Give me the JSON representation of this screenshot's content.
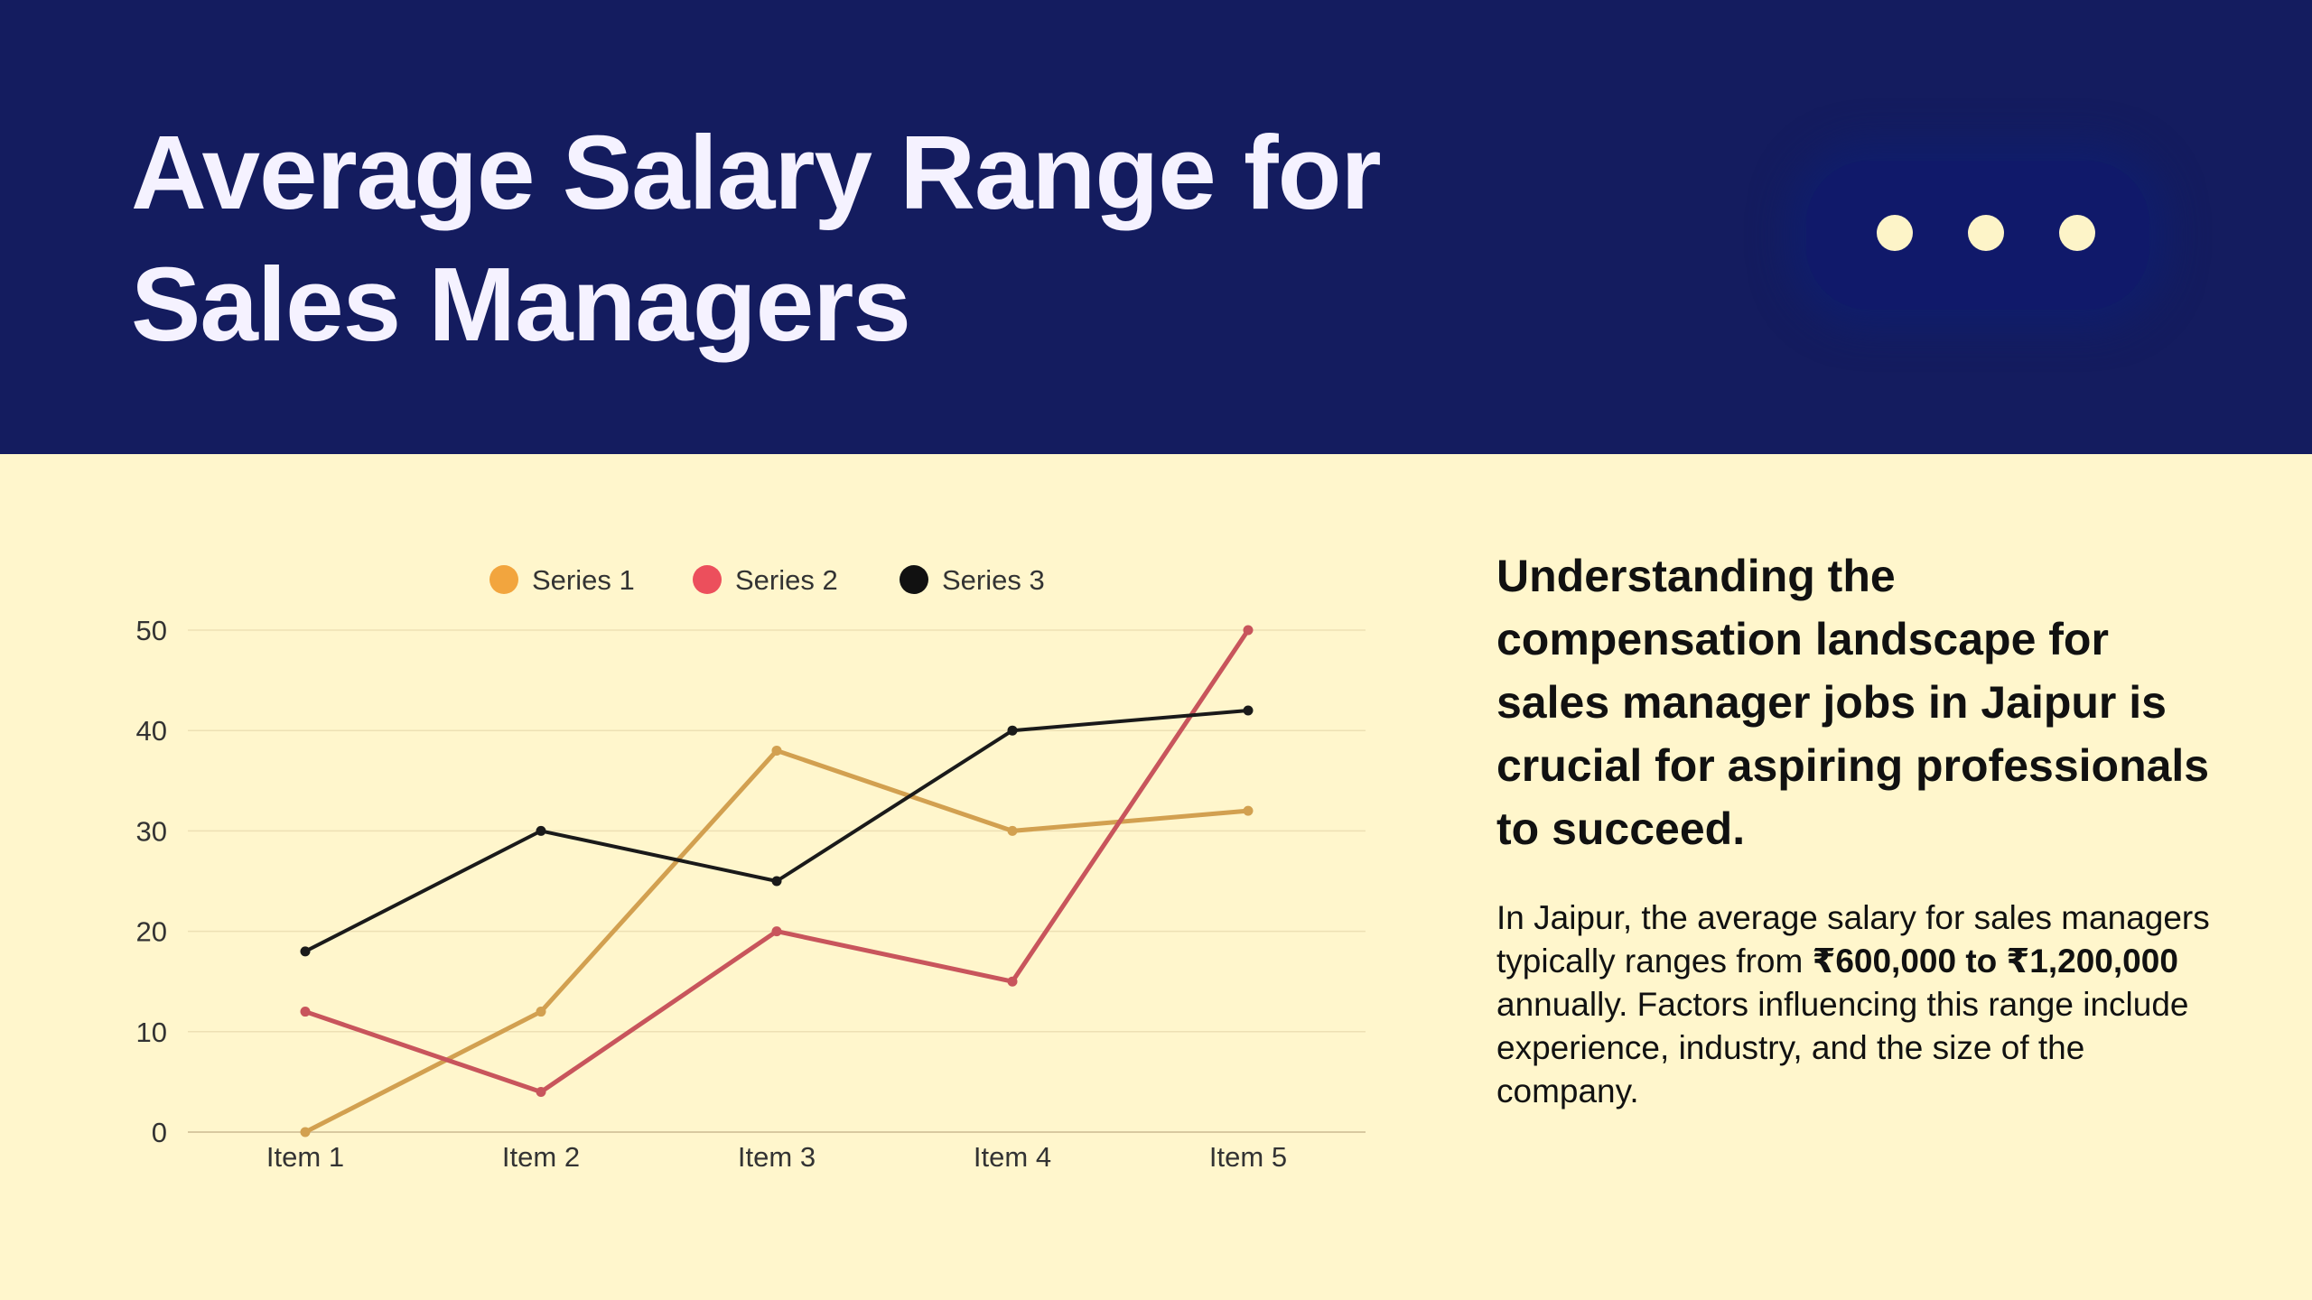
{
  "title": "Average Salary Range for\nSales Managers",
  "colors": {
    "header_bg": "#141c5f",
    "title_text": "#f5f2ff",
    "dots_box": "#10196a",
    "dot": "#fdf4c8",
    "body_bg": "#fff6cc",
    "text_dark": "#111111",
    "grid": "#ede0b4",
    "axis": "#d8c9a0"
  },
  "decoration": {
    "icon": "three-dots-icon",
    "count": 3
  },
  "headline": "Understanding the compensation landscape for sales manager jobs in Jaipur is crucial for aspiring professionals to succeed.",
  "paragraph": {
    "part1": "In Jaipur, the average salary for sales managers typically ranges from ",
    "bold": "₹600,000 to ₹1,200,000",
    "part2": " annually. Factors influencing this range include experience, industry, and the size of the company."
  },
  "chart_data": {
    "type": "line",
    "categories": [
      "Item 1",
      "Item 2",
      "Item 3",
      "Item 4",
      "Item 5"
    ],
    "series": [
      {
        "name": "Series 1",
        "color": "#d2a050",
        "legend_color": "#f2a53e",
        "values": [
          0,
          12,
          38,
          30,
          32
        ]
      },
      {
        "name": "Series 2",
        "color": "#c8555c",
        "legend_color": "#ec4f5c",
        "values": [
          12,
          4,
          20,
          15,
          50
        ]
      },
      {
        "name": "Series 3",
        "color": "#1a1a1a",
        "legend_color": "#111111",
        "values": [
          18,
          30,
          25,
          40,
          42
        ]
      }
    ],
    "yticks": [
      0,
      10,
      20,
      30,
      40,
      50
    ],
    "ylim": [
      0,
      50
    ],
    "grid": true,
    "legend": "top",
    "xlabel": "",
    "ylabel": ""
  }
}
